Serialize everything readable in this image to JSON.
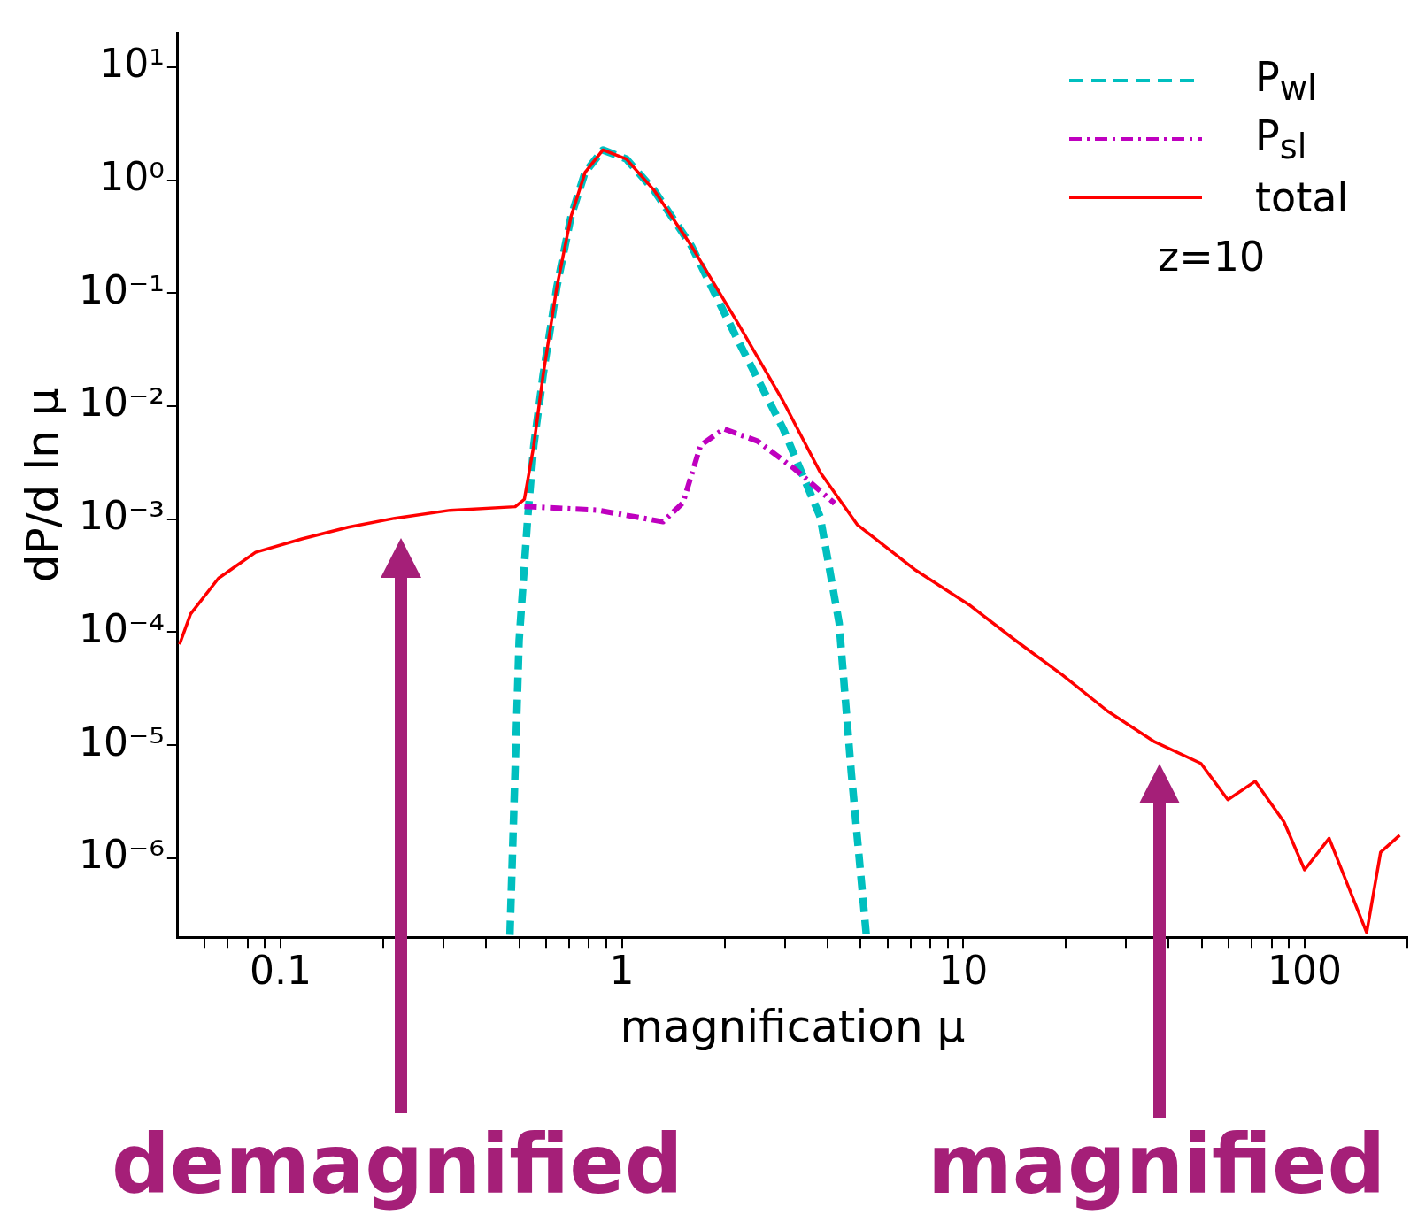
{
  "chart_data": {
    "type": "line",
    "xlabel": "magnification μ",
    "ylabel": "dP/d ln μ",
    "log": "xy",
    "xlim": [
      0.05,
      200
    ],
    "ylim": [
      2e-07,
      20
    ],
    "xticks": [
      {
        "value": 0.06,
        "label": null
      },
      {
        "value": 0.07,
        "label": null
      },
      {
        "value": 0.08,
        "label": null
      },
      {
        "value": 0.09,
        "label": null
      },
      0.1,
      {
        "value": 0.2,
        "label": null
      },
      {
        "value": 0.3,
        "label": null
      },
      {
        "value": 0.4,
        "label": null
      },
      {
        "value": 0.5,
        "label": null
      },
      {
        "value": 0.6,
        "label": null
      },
      {
        "value": 0.7,
        "label": null
      },
      {
        "value": 0.8,
        "label": null
      },
      {
        "value": 0.9,
        "label": null
      },
      1,
      {
        "value": 2,
        "label": null
      },
      {
        "value": 3,
        "label": null
      },
      {
        "value": 4,
        "label": null
      },
      {
        "value": 5,
        "label": null
      },
      {
        "value": 6,
        "label": null
      },
      {
        "value": 7,
        "label": null
      },
      {
        "value": 8,
        "label": null
      },
      {
        "value": 9,
        "label": null
      },
      10,
      {
        "value": 20,
        "label": null
      },
      {
        "value": 30,
        "label": null
      },
      {
        "value": 40,
        "label": null
      },
      {
        "value": 50,
        "label": null
      },
      {
        "value": 60,
        "label": null
      },
      {
        "value": 70,
        "label": null
      },
      {
        "value": 80,
        "label": null
      },
      {
        "value": 90,
        "label": null
      },
      100,
      {
        "value": 200,
        "label": null
      }
    ],
    "yticks": [
      {
        "value": 1e-06,
        "label": "10⁻⁶"
      },
      {
        "value": 1e-05,
        "label": "10⁻⁵"
      },
      {
        "value": 0.0001,
        "label": "10⁻⁴"
      },
      {
        "value": 0.001,
        "label": "10⁻³"
      },
      {
        "value": 0.01,
        "label": "10⁻²"
      },
      {
        "value": 0.1,
        "label": "10⁻¹"
      },
      {
        "value": 1,
        "label": "10⁰"
      },
      {
        "value": 10,
        "label": "10¹"
      }
    ],
    "grid": false,
    "legend": "top right",
    "series": [
      {
        "name": "P$_{wl}$",
        "color": "#00bfbf",
        "line_style": "dashed",
        "x": [
          0.47,
          0.5,
          0.53,
          0.552,
          0.588,
          0.645,
          0.71,
          0.78,
          0.88,
          1.03,
          1.24,
          1.6,
          2.18,
          2.97,
          3.81,
          4.33,
          4.7,
          5.2
        ],
        "values": [
          2.1e-07,
          8.5e-05,
          0.00105,
          0.0045,
          0.019,
          0.114,
          0.48,
          1.17,
          1.85,
          1.54,
          0.82,
          0.26,
          0.039,
          0.0063,
          0.00105,
          0.00012,
          5.7e-06,
          2.1e-07
        ]
      },
      {
        "name": "P$_{sl}$",
        "color": "#bf00bf",
        "line_style": "dotted",
        "x": [
          0.518,
          0.85,
          1.32,
          1.51,
          1.7,
          1.99,
          2.5,
          3.2,
          4.2
        ],
        "values": [
          0.0013,
          0.0012,
          0.00095,
          0.0014,
          0.0045,
          0.0063,
          0.0049,
          0.0028,
          0.00138
        ]
      },
      {
        "name": "total",
        "color": "#ff0000",
        "line_style": "solid",
        "x": [
          0.0506,
          0.0545,
          0.0658,
          0.0845,
          0.1155,
          0.158,
          0.216,
          0.314,
          0.487,
          0.518,
          0.552,
          0.588,
          0.645,
          0.71,
          0.78,
          0.88,
          1.03,
          1.24,
          1.6,
          2.18,
          2.97,
          3.81,
          4.9,
          7.2,
          10.4,
          14.2,
          19.5,
          26.5,
          36.4,
          49.7,
          59.6,
          71.7,
          87,
          100,
          118,
          152,
          167,
          190
        ],
        "values": [
          7.8e-05,
          0.000145,
          0.0003,
          0.00051,
          0.00067,
          0.00085,
          0.00102,
          0.0012,
          0.00129,
          0.0015,
          0.0045,
          0.019,
          0.114,
          0.48,
          1.17,
          1.85,
          1.54,
          0.82,
          0.26,
          0.055,
          0.011,
          0.0026,
          0.00089,
          0.00036,
          0.000175,
          8.5e-05,
          4.2e-05,
          2e-05,
          1.07e-05,
          6.9e-06,
          3.3e-06,
          4.8e-06,
          2.1e-06,
          7.9e-07,
          1.5e-06,
          2.2e-07,
          1.13e-06,
          1.6e-06
        ]
      }
    ],
    "annotations": [
      "z=10",
      "demagnified",
      "magnified"
    ]
  }
}
